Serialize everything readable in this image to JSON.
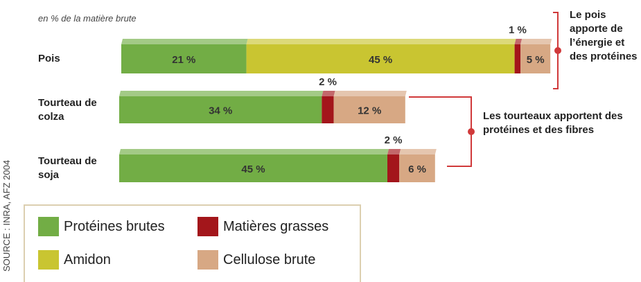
{
  "chart_data": {
    "type": "stacked_bar_horizontal",
    "subtitle": "en % de la matière brute",
    "categories": [
      "Pois",
      "Tourteau de colza",
      "Tourteau de soja"
    ],
    "series": [
      {
        "name": "Protéines brutes",
        "color": "#72ad45",
        "values": [
          21,
          34,
          45
        ],
        "value_labels": [
          "21 %",
          "34 %",
          "45 %"
        ]
      },
      {
        "name": "Amidon",
        "color": "#c9c531",
        "values": [
          45,
          null,
          null
        ],
        "value_labels": [
          "45 %",
          null,
          null
        ]
      },
      {
        "name": "Matières grasses",
        "color": "#a3161b",
        "values": [
          1,
          2,
          2
        ],
        "value_labels": [
          "1 %",
          "2 %",
          "2 %"
        ]
      },
      {
        "name": "Cellulose brute",
        "color": "#d7a884",
        "values": [
          5,
          12,
          6
        ],
        "value_labels": [
          "5 %",
          "12 %",
          "6 %"
        ]
      }
    ],
    "annotations": [
      "Le pois apporte de l’énergie et des protéines",
      "Les tourteaux apportent des protéines et des fibres"
    ],
    "source": "SOURCE : INRA, AFZ 2004"
  }
}
